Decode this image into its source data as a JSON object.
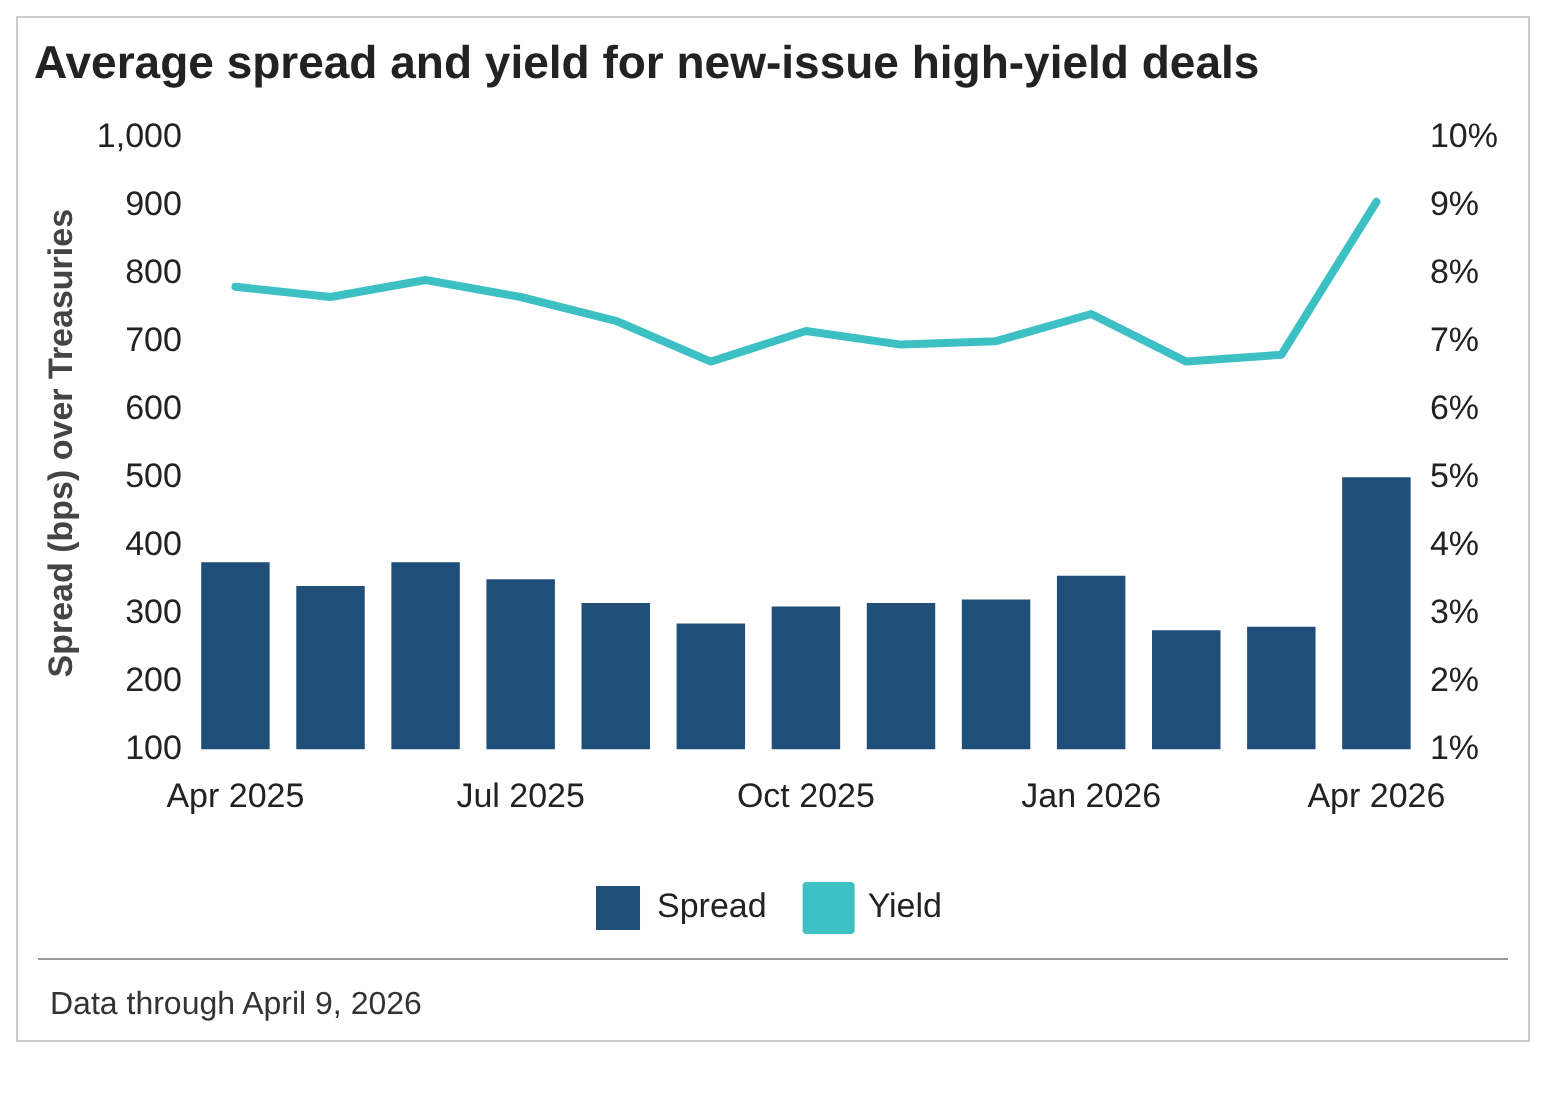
{
  "chart_data": {
    "type": "bar",
    "title": "Average spread and yield for new-issue high-yield deals",
    "ylabel": "Spread (bps) over Treasuries",
    "categories": [
      "Apr 2025",
      null,
      null,
      "Jul 2025",
      null,
      null,
      "Oct 2025",
      null,
      null,
      "Jan 2026",
      null,
      null,
      "Apr 2026"
    ],
    "series": [
      {
        "name": "Spread",
        "color": "#1f4e79",
        "values": [
          375,
          340,
          375,
          350,
          315,
          285,
          310,
          315,
          320,
          355,
          275,
          280,
          500
        ]
      },
      {
        "name": "Yield",
        "type": "line",
        "axis": "y2",
        "color": "#3cc0c4",
        "values": [
          7.8,
          7.65,
          7.9,
          7.65,
          7.3,
          6.7,
          7.15,
          6.95,
          7.0,
          7.4,
          6.7,
          6.8,
          9.05
        ]
      }
    ],
    "ylim": [
      100,
      1000
    ],
    "yticks": [
      {
        "value": 100,
        "label": "100"
      },
      {
        "value": 200,
        "label": "200"
      },
      {
        "value": 300,
        "label": "300"
      },
      {
        "value": 400,
        "label": "400"
      },
      {
        "value": 500,
        "label": "500"
      },
      {
        "value": 600,
        "label": "600"
      },
      {
        "value": 700,
        "label": "700"
      },
      {
        "value": 800,
        "label": "800"
      },
      {
        "value": 900,
        "label": "900"
      },
      {
        "value": 1000,
        "label": "1,000"
      }
    ],
    "y2lim": [
      1,
      10
    ],
    "y2ticks": [
      {
        "value": 1,
        "label": "1%"
      },
      {
        "value": 2,
        "label": "2%"
      },
      {
        "value": 3,
        "label": "3%"
      },
      {
        "value": 4,
        "label": "4%"
      },
      {
        "value": 5,
        "label": "5%"
      },
      {
        "value": 6,
        "label": "6%"
      },
      {
        "value": 7,
        "label": "7%"
      },
      {
        "value": 8,
        "label": "8%"
      },
      {
        "value": 9,
        "label": "9%"
      },
      {
        "value": 10,
        "label": "10%"
      }
    ],
    "grid": false,
    "legend": "bottom",
    "marker": "none",
    "annotations": [
      "Data through April 9, 2026"
    ]
  }
}
